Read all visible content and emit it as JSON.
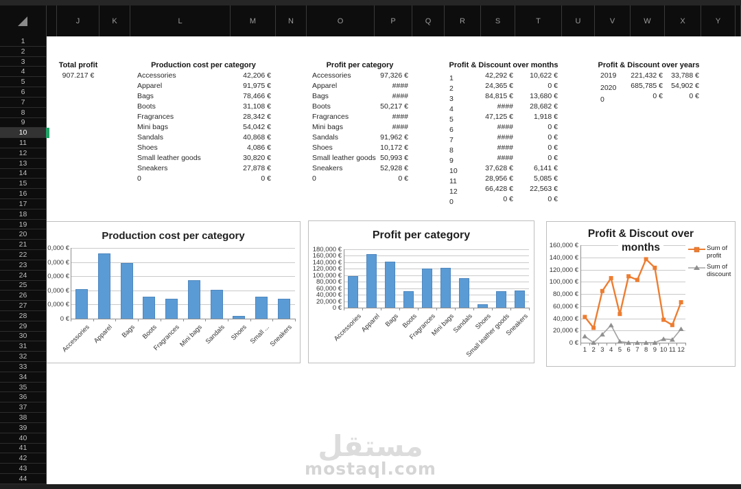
{
  "grid": {
    "column_letters": [
      "",
      "J",
      "K",
      "L",
      "M",
      "N",
      "O",
      "P",
      "Q",
      "R",
      "S",
      "T",
      "U",
      "V",
      "W",
      "X",
      "Y",
      ""
    ],
    "row_numbers": [
      1,
      2,
      3,
      4,
      5,
      6,
      7,
      8,
      9,
      10,
      11,
      12,
      13,
      14,
      15,
      16,
      17,
      18,
      19,
      20,
      21,
      22,
      23,
      24,
      25,
      26,
      27,
      28,
      29,
      30,
      31,
      32,
      33,
      34,
      35,
      36,
      37,
      38,
      39,
      40,
      41,
      42,
      43,
      44
    ],
    "selected_row": 10
  },
  "sheet": {
    "total_profit": {
      "label": "Total profit",
      "value": "907.217 €"
    },
    "production_table": {
      "title": "Production cost per category",
      "rows": [
        [
          "Accessories",
          "42,206 €"
        ],
        [
          "Apparel",
          "91,975 €"
        ],
        [
          "Bags",
          "78,466 €"
        ],
        [
          "Boots",
          "31,108 €"
        ],
        [
          "Fragrances",
          "28,342 €"
        ],
        [
          "Mini bags",
          "54,042 €"
        ],
        [
          "Sandals",
          "40,868 €"
        ],
        [
          "Shoes",
          "4,086 €"
        ],
        [
          "Small leather goods",
          "30,820 €"
        ],
        [
          "Sneakers",
          "27,878 €"
        ],
        [
          "0",
          "0 €"
        ]
      ]
    },
    "profit_table": {
      "title": "Profit per category",
      "rows": [
        [
          "Accessories",
          "97,326 €"
        ],
        [
          "Apparel",
          "####"
        ],
        [
          "Bags",
          "####"
        ],
        [
          "Boots",
          "50,217 €"
        ],
        [
          "Fragrances",
          "####"
        ],
        [
          "Mini bags",
          "####"
        ],
        [
          "Sandals",
          "91,962 €"
        ],
        [
          "Shoes",
          "10,172 €"
        ],
        [
          "Small leather goods",
          "50,993 €"
        ],
        [
          "Sneakers",
          "52,928 €"
        ],
        [
          "0",
          "0 €"
        ]
      ]
    },
    "months_table": {
      "title": "Profit & Discount over months",
      "rows": [
        [
          "1",
          "42,292 €",
          "10,622 €"
        ],
        [
          "2",
          "24,365 €",
          "0 €"
        ],
        [
          "3",
          "84,815 €",
          "13,680 €"
        ],
        [
          "4",
          "####",
          "28,682 €"
        ],
        [
          "5",
          "47,125 €",
          "1,918 €"
        ],
        [
          "6",
          "####",
          "0 €"
        ],
        [
          "7",
          "####",
          "0 €"
        ],
        [
          "8",
          "####",
          "0 €"
        ],
        [
          "9",
          "####",
          "0 €"
        ],
        [
          "10",
          "37,628 €",
          "6,141 €"
        ],
        [
          "11",
          "28,956 €",
          "5,085 €"
        ],
        [
          "12",
          "66,428 €",
          "22,563 €"
        ],
        [
          "0",
          "0 €",
          "0 €"
        ]
      ]
    },
    "years_table": {
      "title": "Profit & Discount over years",
      "rows": [
        [
          "2019",
          "221,432 €",
          "33,788 €"
        ],
        [
          "2020",
          "685,785 €",
          "54,902 €"
        ],
        [
          "0",
          "0 €",
          "0 €"
        ]
      ]
    }
  },
  "chart_data": [
    {
      "type": "bar",
      "title": "Production cost per category",
      "categories": [
        "Accessories",
        "Apparel",
        "Bags",
        "Boots",
        "Fragrances",
        "Mini bags",
        "Sandals",
        "Shoes",
        "Small ...",
        "Sneakers"
      ],
      "values": [
        42206,
        91975,
        78466,
        31108,
        28342,
        54042,
        40868,
        4086,
        30820,
        27878
      ],
      "ylim": [
        0,
        100000
      ],
      "ytick_step": 20000,
      "ytick_labels_clipped": [
        "0,000 €",
        "0,000 €",
        "0,000 €",
        "0,000 €",
        "0,000 €",
        "0 €"
      ],
      "bar_color": "#5B9BD5",
      "grid": true,
      "legend": "none"
    },
    {
      "type": "bar",
      "title": "Profit per category",
      "categories": [
        "Accessories",
        "Apparel",
        "Bags",
        "Boots",
        "Fragrances",
        "Mini bags",
        "Sandals",
        "Shoes",
        "Small leather goods",
        "Sneakers"
      ],
      "values": [
        97326,
        166000,
        142000,
        50217,
        120000,
        122000,
        91962,
        10172,
        50993,
        52928
      ],
      "ylim": [
        0,
        180000
      ],
      "ytick_step": 20000,
      "bar_color": "#5B9BD5",
      "grid": true,
      "legend": "none"
    },
    {
      "type": "line",
      "title": "Profit & Discout over months",
      "title_lines": [
        "Profit & Discout over",
        "months"
      ],
      "x": [
        1,
        2,
        3,
        4,
        5,
        6,
        7,
        8,
        9,
        10,
        11,
        12
      ],
      "series": [
        {
          "name": "Sum of profit",
          "color": "#ED7D31",
          "marker": "square",
          "values": [
            42292,
            24365,
            84815,
            106000,
            47125,
            109000,
            103000,
            137000,
            123000,
            37628,
            28956,
            66428
          ]
        },
        {
          "name": "Sum of discount",
          "color": "#A5A5A5",
          "marker": "triangle",
          "values": [
            10622,
            0,
            13680,
            28682,
            1918,
            0,
            0,
            0,
            0,
            6141,
            5085,
            22563
          ]
        }
      ],
      "ylim": [
        0,
        160000
      ],
      "ytick_step": 20000,
      "grid": true,
      "legend_position": "right"
    }
  ],
  "watermark": {
    "logo": "مستقل",
    "site": "mostaql.com"
  },
  "colors": {
    "accent_blue": "#5B9BD5",
    "accent_orange": "#ED7D31",
    "accent_gray": "#A5A5A5",
    "selection_green": "#21A366"
  }
}
